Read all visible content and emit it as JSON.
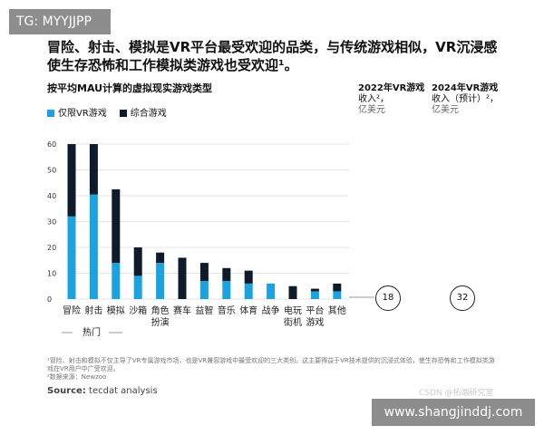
{
  "tag": "TG: MYYJJPP",
  "site": "www.shangjinddj.com",
  "title": "冒险、射击、模拟是VR平台最受欢迎的品类，与传统游戏相似，VR沉浸感使生存恐怖和工作模拟类游戏也受欢迎¹。",
  "columns": [
    {
      "l1": "2022年VR游戏",
      "l2": "收入²，",
      "l3": "亿美元",
      "value": "18"
    },
    {
      "l1": "2024年VR游戏",
      "l2": "收入（预计）²，",
      "l3": "亿美元",
      "value": "32"
    }
  ],
  "footnote1": "¹冒险、射击和模拟不仅主导了VR专属游戏市场，也是VR兼容游戏中最受欢迎的三大类别。这主要得益于VR技术提供的沉浸式体验，使生存恐怖和工作模拟类游戏在VR用户中广受欢迎。",
  "footnote2": "²数据来源：Newzoo",
  "source_label": "Source:",
  "source": "tecdat analysis",
  "watermark": "CSDN @拓端研究室",
  "chart_data": {
    "type": "bar",
    "stacked": true,
    "title": "按平均MAU计算的虚拟现实游戏类型",
    "categories": [
      "冒险",
      "射击",
      "模拟",
      "沙箱",
      "角色\n扮演",
      "赛车",
      "益智",
      "音乐",
      "体育",
      "战争",
      "电玩\n街机",
      "平台\n游戏",
      "其他"
    ],
    "series": [
      {
        "name": "仅限VR游戏",
        "color": "#1aa3e0",
        "values": [
          32,
          40.5,
          14,
          9,
          14,
          0,
          7,
          7,
          6,
          6,
          0,
          3,
          3
        ]
      },
      {
        "name": "综合游戏",
        "color": "#0d1b2a",
        "values": [
          28,
          19.5,
          28.5,
          11,
          4,
          16,
          7,
          5,
          5,
          0,
          5,
          1,
          3
        ]
      }
    ],
    "yticks": [
      0,
      10,
      20,
      30,
      40,
      50,
      60
    ],
    "ylim": [
      0,
      60
    ],
    "group_label": "热门"
  }
}
